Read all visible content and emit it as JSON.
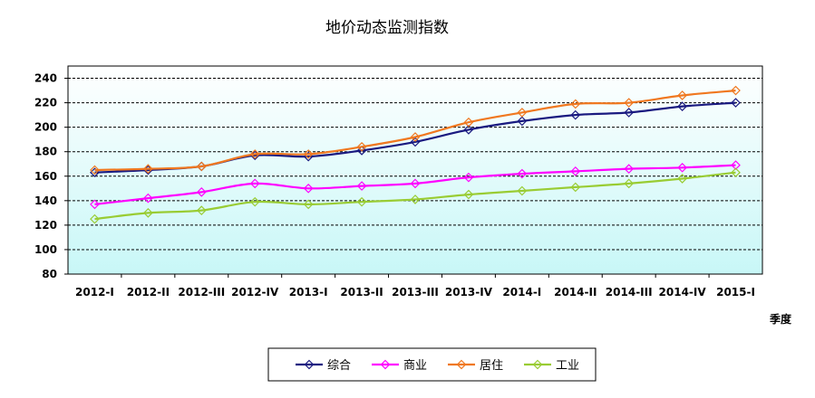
{
  "chart_data": {
    "type": "line",
    "title": "地价动态监测指数",
    "xlabel": "季度",
    "ylabel": "",
    "categories": [
      "2012-I",
      "2012-II",
      "2012-III",
      "2012-IV",
      "2013-I",
      "2013-II",
      "2013-III",
      "2013-IV",
      "2014-I",
      "2014-II",
      "2014-III",
      "2014-IV",
      "2015-I"
    ],
    "ylim": [
      80,
      250
    ],
    "yticks": [
      80,
      100,
      120,
      140,
      160,
      180,
      200,
      220,
      240
    ],
    "grid": true,
    "legend_position": "bottom",
    "series": [
      {
        "name": "综合",
        "color": "#1a1a80",
        "values": [
          163,
          165,
          168,
          177,
          176,
          181,
          188,
          198,
          205,
          210,
          212,
          217,
          220
        ]
      },
      {
        "name": "商业",
        "color": "#ff00ff",
        "values": [
          137,
          142,
          147,
          154,
          150,
          152,
          154,
          159,
          162,
          164,
          166,
          167,
          169
        ]
      },
      {
        "name": "居住",
        "color": "#f07820",
        "values": [
          165,
          166,
          168,
          178,
          178,
          184,
          192,
          204,
          212,
          219,
          220,
          226,
          230
        ]
      },
      {
        "name": "工业",
        "color": "#99cc33",
        "values": [
          125,
          130,
          132,
          139,
          137,
          139,
          141,
          145,
          148,
          151,
          154,
          158,
          163
        ]
      }
    ]
  }
}
